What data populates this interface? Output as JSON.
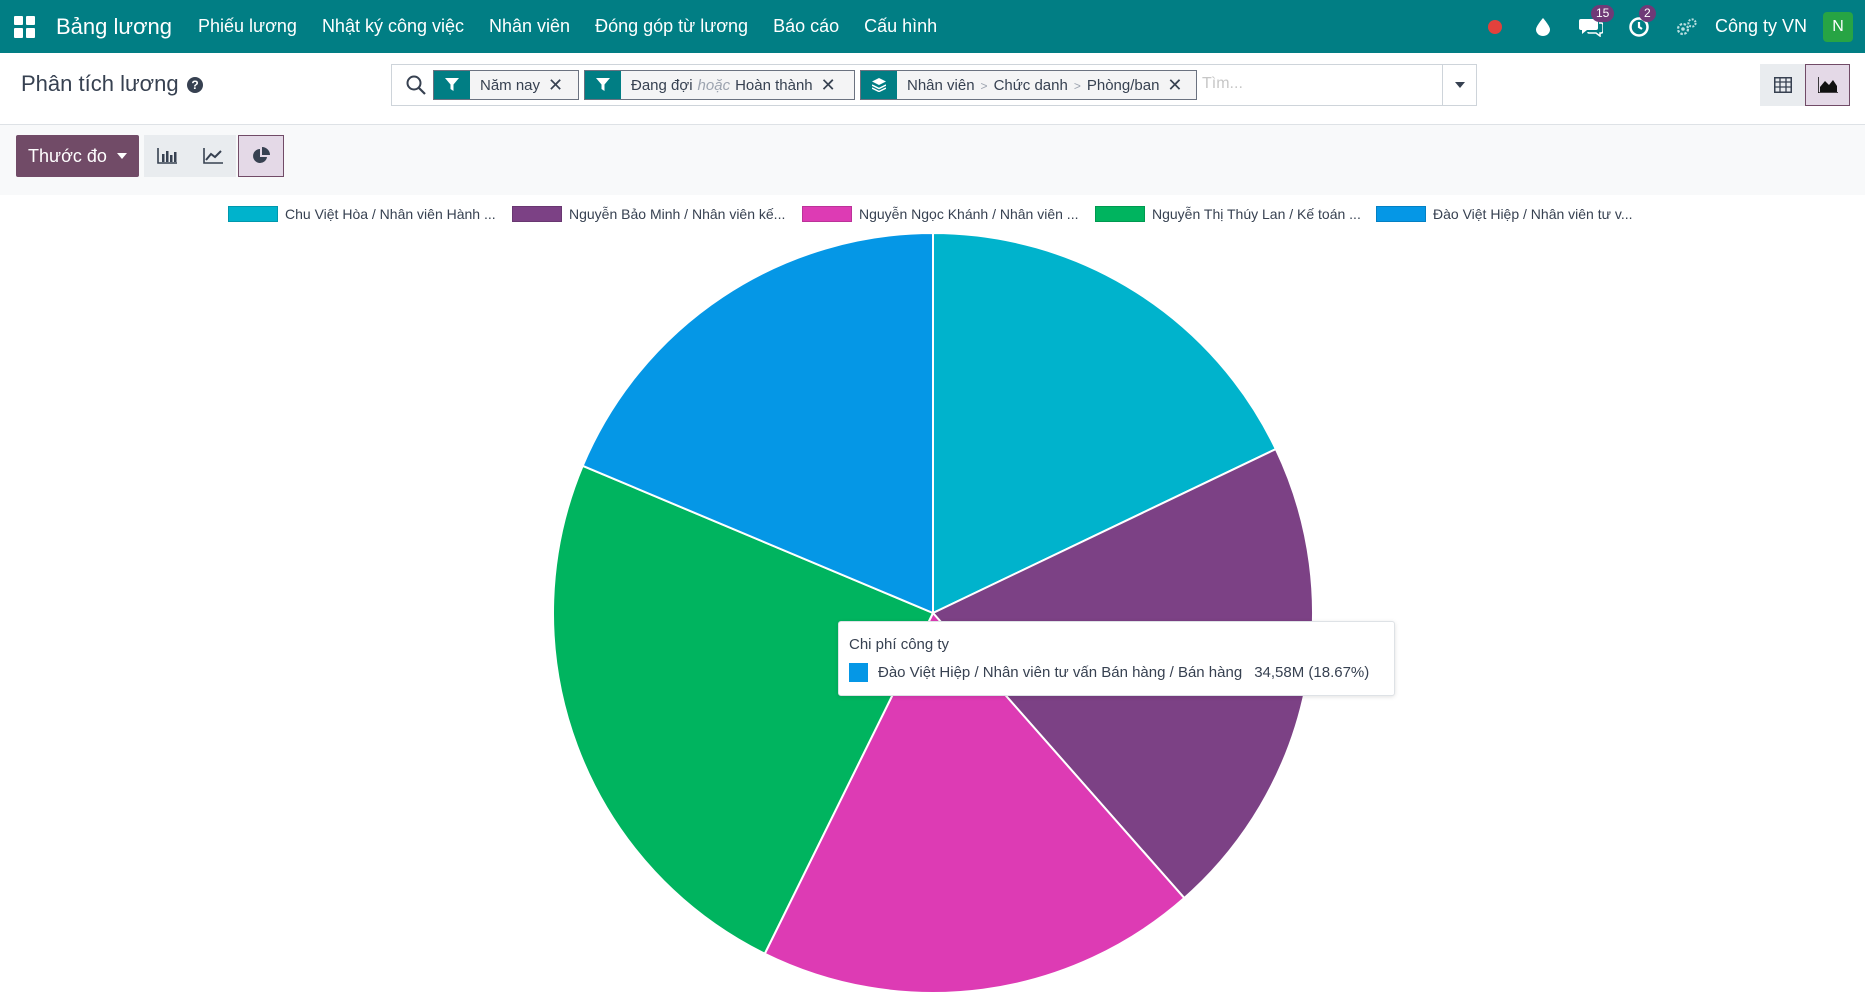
{
  "navbar": {
    "app_name": "Bảng lương",
    "menu": [
      "Phiếu lương",
      "Nhật ký công việc",
      "Nhân viên",
      "Đóng góp từ lương",
      "Báo cáo",
      "Cấu hình"
    ],
    "messages_count": "15",
    "activities_count": "2",
    "company": "Công ty VN",
    "avatar_initial": "N"
  },
  "control_panel": {
    "title": "Phân tích lương",
    "facets": [
      {
        "icon": "filter-icon",
        "label": "Năm nay"
      },
      {
        "icon": "filter-icon",
        "label_a": "Đang đợi",
        "separator": "hoặc",
        "label_b": "Hoàn thành"
      },
      {
        "icon": "group-by-icon",
        "parts": [
          "Nhân viên",
          "Chức danh",
          "Phòng/ban"
        ]
      }
    ],
    "search_placeholder": "Tìm..."
  },
  "toolbar": {
    "measure_label": "Thước đo"
  },
  "chart_data": {
    "type": "pie",
    "title": "",
    "series_label": "Chi phí công ty",
    "legend_position": "top",
    "slices": [
      {
        "label": "Chu Việt Hòa / Nhân viên Hành ...",
        "color": "#00b3cc",
        "percent": 17.9
      },
      {
        "label": "Nguyễn Bảo Minh / Nhân viên kế...",
        "color": "#7c4185",
        "percent": 20.6
      },
      {
        "label": "Nguyễn Ngọc Khánh / Nhân viên ...",
        "color": "#dd3bb4",
        "percent": 18.8
      },
      {
        "label": "Nguyễn Thị Thúy Lan / Kế toán ...",
        "color": "#00b45f",
        "percent": 24.03
      },
      {
        "label": "Đào Việt Hiệp / Nhân viên tư v...",
        "color": "#0597e6",
        "percent": 18.67
      }
    ]
  },
  "tooltip": {
    "title": "Chi phí công ty",
    "label": "Đào Việt Hiệp / Nhân viên tư vấn Bán hàng / Bán hàng",
    "value": "34,58M (18.67%)",
    "color": "#0597e6"
  }
}
